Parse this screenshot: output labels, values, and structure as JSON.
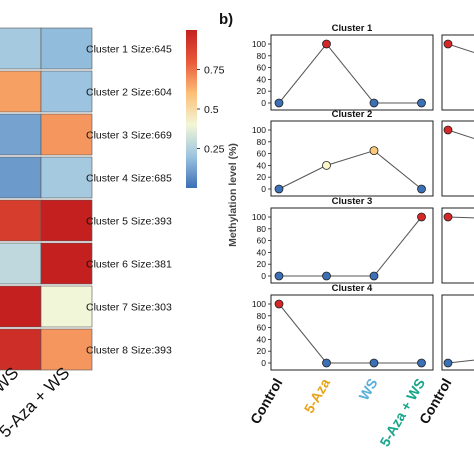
{
  "chart_data": [
    {
      "type": "heatmap",
      "columns": [
        "WS",
        "5-Aza + WS"
      ],
      "rows": [
        {
          "label": "Cluster 1 Size:645",
          "values": [
            0.22,
            0.18
          ]
        },
        {
          "label": "Cluster 2 Size:604",
          "values": [
            0.66,
            0.2
          ]
        },
        {
          "label": "Cluster 3 Size:669",
          "values": [
            0.12,
            0.68
          ]
        },
        {
          "label": "Cluster 4 Size:685",
          "values": [
            0.1,
            0.22
          ]
        },
        {
          "label": "Cluster 5 Size:393",
          "values": [
            0.9,
            1.0
          ]
        },
        {
          "label": "Cluster 6 Size:381",
          "values": [
            0.28,
            1.0
          ]
        },
        {
          "label": "Cluster 7 Size:303",
          "values": [
            1.0,
            0.4
          ]
        },
        {
          "label": "Cluster 8 Size:393",
          "values": [
            0.95,
            0.68
          ]
        }
      ],
      "colorbar": {
        "ticks": [
          "0.75",
          "0.5",
          "0.25"
        ],
        "tick_values": [
          0.75,
          0.5,
          0.25
        ],
        "range": [
          0,
          1
        ],
        "colors": [
          "#3b6fb6",
          "#9cc4e0",
          "#f2f6d8",
          "#fcbf76",
          "#e8593a",
          "#c42020"
        ]
      }
    },
    {
      "type": "line",
      "panel_label": "b)",
      "ylabel": "Methylation level (%)",
      "categories": [
        "Control",
        "5-Aza",
        "WS",
        "5-Aza + WS"
      ],
      "category_colors": [
        "#111111",
        "#e8a317",
        "#5ab0d8",
        "#17a589"
      ],
      "ylim": [
        0,
        100
      ],
      "yticks": [
        "0",
        "20",
        "40",
        "60",
        "80",
        "100"
      ],
      "panels": [
        {
          "title": "Cluster 1",
          "values": [
            0,
            100,
            0,
            0
          ],
          "point_colors": [
            "#3b6fb6",
            "#d62728",
            "#3b6fb6",
            "#3b6fb6"
          ]
        },
        {
          "title": "Cluster 2",
          "values": [
            0,
            40,
            65,
            0
          ],
          "point_colors": [
            "#3b6fb6",
            "#fbf7c8",
            "#fcc97a",
            "#3b6fb6"
          ]
        },
        {
          "title": "Cluster 3",
          "values": [
            0,
            0,
            0,
            100
          ],
          "point_colors": [
            "#3b6fb6",
            "#3b6fb6",
            "#3b6fb6",
            "#d62728"
          ]
        },
        {
          "title": "Cluster 4",
          "values": [
            100,
            0,
            0,
            0
          ],
          "point_colors": [
            "#d62728",
            "#3b6fb6",
            "#3b6fb6",
            "#3b6fb6"
          ]
        }
      ],
      "partial_panels": [
        {
          "first_values": [
            100,
            70
          ]
        },
        {
          "first_values": [
            100,
            70
          ]
        },
        {
          "first_values": [
            100,
            97
          ]
        },
        {
          "first_values": [
            0,
            10
          ]
        }
      ],
      "partial_first_category": "Control"
    }
  ]
}
